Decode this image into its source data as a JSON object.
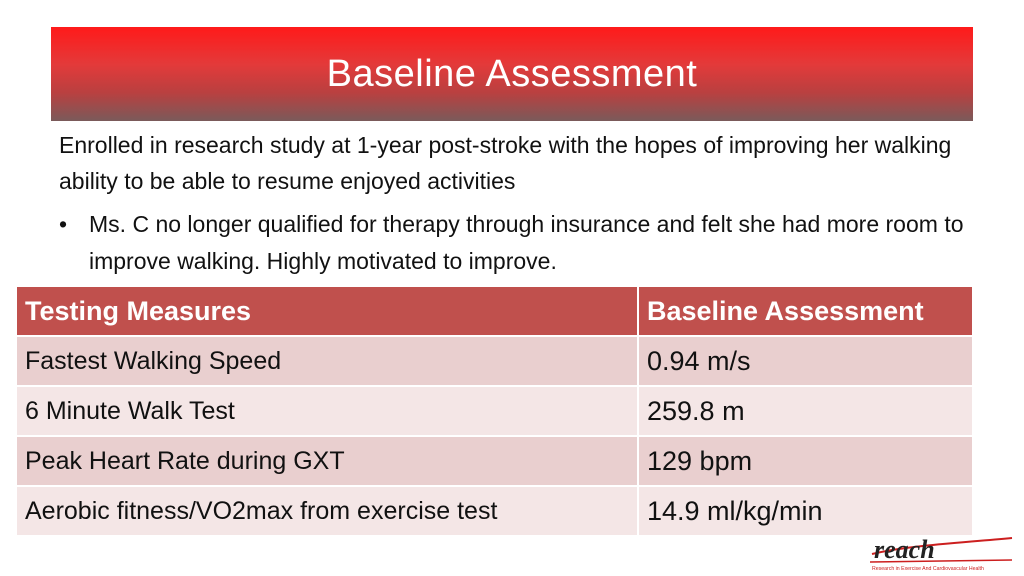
{
  "slide": {
    "title": "Baseline Assessment",
    "intro": "Enrolled in research study at 1-year post-stroke with the hopes of improving her walking ability to be able to resume enjoyed activities",
    "bullets": [
      "Ms. C no longer qualified for therapy through insurance and felt she had more room to improve walking. Highly motivated to improve."
    ]
  },
  "table": {
    "headers": [
      "Testing Measures",
      "Baseline Assessment"
    ],
    "rows": [
      {
        "measure": "Fastest Walking Speed",
        "value": "0.94 m/s"
      },
      {
        "measure": "6 Minute Walk Test",
        "value": "259.8 m"
      },
      {
        "measure": "Peak Heart Rate during GXT",
        "value": "129 bpm"
      },
      {
        "measure": "Aerobic fitness/VO2max from exercise test",
        "value": "14.9 ml/kg/min"
      }
    ]
  },
  "logo": {
    "text": "reach",
    "tagline": "Research in Exercise And Cardiovascular Health"
  },
  "colors": {
    "title_red": "#ff1a1a",
    "header_red": "#c0504d",
    "row_odd": "#e9cfcf",
    "row_even": "#f4e6e6",
    "logo_red": "#cc1f1f"
  }
}
